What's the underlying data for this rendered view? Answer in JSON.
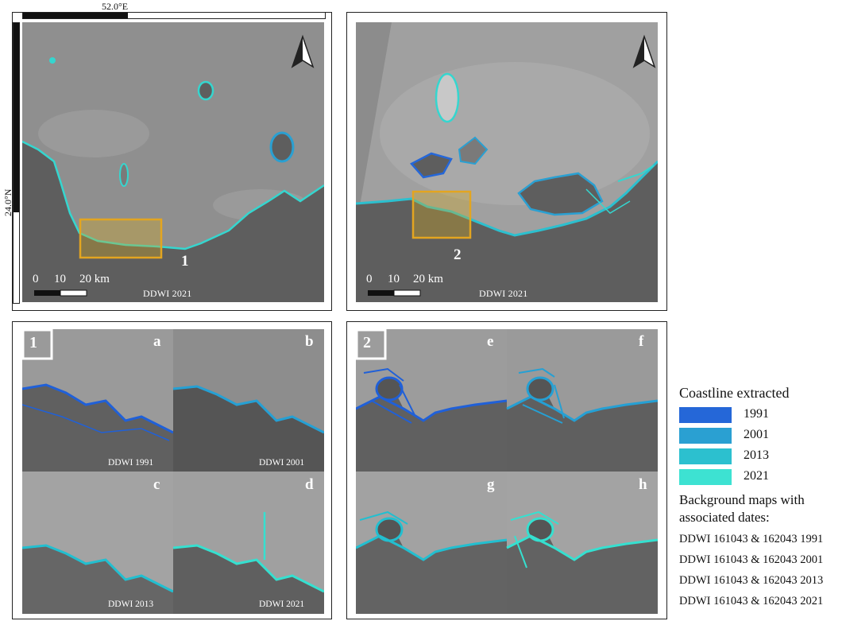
{
  "frame": {
    "top_coord_label": "52.0°E",
    "left_coord_label": "24.0°N"
  },
  "overview_left": {
    "area_number": "1",
    "scale_labels": [
      "0",
      "10",
      "20 km"
    ],
    "caption": "DDWI 2021"
  },
  "overview_right": {
    "area_number": "2",
    "scale_labels": [
      "0",
      "10",
      "20 km"
    ],
    "caption": "DDWI 2021"
  },
  "detail_left": {
    "badge": "1",
    "subpanels": [
      {
        "letter": "a",
        "caption": "DDWI 1991",
        "line_color": "#2060d8"
      },
      {
        "letter": "b",
        "caption": "DDWI 2001",
        "line_color": "#25a0d4"
      },
      {
        "letter": "c",
        "caption": "DDWI 2013",
        "line_color": "#22bfd0"
      },
      {
        "letter": "d",
        "caption": "DDWI 2021",
        "line_color": "#35e0d0"
      }
    ]
  },
  "detail_right": {
    "badge": "2",
    "subpanels": [
      {
        "letter": "e",
        "line_color": "#2060d8"
      },
      {
        "letter": "f",
        "line_color": "#25a0d4"
      },
      {
        "letter": "g",
        "line_color": "#22bfd0"
      },
      {
        "letter": "h",
        "line_color": "#35e0d0"
      }
    ]
  },
  "legend": {
    "title": "Coastline extracted",
    "entries": [
      {
        "year": "1991",
        "color": "#2567d8"
      },
      {
        "year": "2001",
        "color": "#2aa0d2"
      },
      {
        "year": "2013",
        "color": "#2cc0cf"
      },
      {
        "year": "2021",
        "color": "#3de2d2"
      }
    ],
    "bg_title_line1": "Background maps with",
    "bg_title_line2": "associated dates:",
    "bg_dates": [
      "DDWI 161043 & 162043 1991",
      "DDWI 161043 & 162043 2001",
      "DDWI 161043 & 162043 2013",
      "DDWI 161043 & 162043 2021"
    ]
  },
  "colors": {
    "sea": "#8f8f8f",
    "land": "#5c5c5c",
    "highlight_box": "#e3a520"
  }
}
